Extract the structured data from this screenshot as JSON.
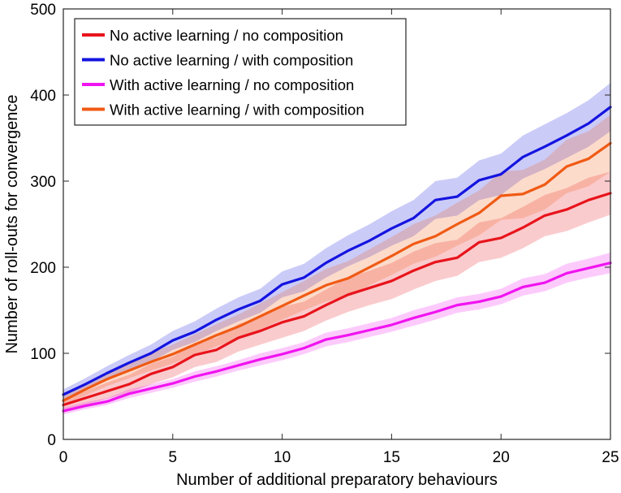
{
  "chart_data": {
    "type": "line",
    "xlabel": "Number of additional preparatory behaviours",
    "ylabel": "Number of roll-outs for convergence",
    "xlim": [
      0,
      25
    ],
    "ylim": [
      0,
      500
    ],
    "xticks": [
      0,
      5,
      10,
      15,
      20,
      25
    ],
    "yticks": [
      0,
      100,
      200,
      300,
      400,
      500
    ],
    "x": [
      0,
      1,
      2,
      3,
      4,
      5,
      6,
      7,
      8,
      9,
      10,
      11,
      12,
      13,
      14,
      15,
      16,
      17,
      18,
      19,
      20,
      21,
      22,
      23,
      24,
      25
    ],
    "legend_position": "top-left",
    "series": [
      {
        "name": "No active learning / no composition",
        "color": "#e8141c",
        "values": [
          40,
          48,
          56,
          64,
          76,
          84,
          98,
          104,
          118,
          126,
          136,
          143,
          156,
          168,
          176,
          184,
          196,
          206,
          211,
          229,
          234,
          246,
          260,
          267,
          278,
          286
        ],
        "lower": [
          34,
          40,
          47,
          54,
          64,
          72,
          84,
          90,
          102,
          110,
          118,
          126,
          138,
          148,
          156,
          163,
          174,
          184,
          190,
          206,
          211,
          222,
          236,
          242,
          252,
          261
        ],
        "upper": [
          46,
          56,
          66,
          75,
          88,
          96,
          112,
          118,
          134,
          142,
          154,
          160,
          174,
          188,
          196,
          205,
          218,
          228,
          232,
          252,
          257,
          270,
          284,
          292,
          304,
          311
        ]
      },
      {
        "name": "No active learning / with composition",
        "color": "#1414e0",
        "values": [
          52,
          64,
          77,
          89,
          100,
          115,
          125,
          139,
          151,
          161,
          180,
          188,
          205,
          219,
          231,
          245,
          257,
          278,
          282,
          301,
          308,
          328,
          340,
          353,
          367,
          386
        ],
        "lower": [
          46,
          57,
          69,
          80,
          90,
          104,
          113,
          126,
          137,
          147,
          165,
          172,
          188,
          201,
          212,
          225,
          236,
          256,
          260,
          278,
          284,
          303,
          314,
          327,
          340,
          358
        ],
        "upper": [
          58,
          71,
          85,
          98,
          110,
          126,
          137,
          152,
          165,
          175,
          195,
          204,
          222,
          237,
          250,
          265,
          278,
          300,
          304,
          324,
          332,
          353,
          366,
          379,
          394,
          414
        ]
      },
      {
        "name": "With active learning / no composition",
        "color": "#f014f0",
        "values": [
          33,
          39,
          44,
          53,
          59,
          65,
          73,
          79,
          86,
          93,
          99,
          106,
          116,
          121,
          127,
          133,
          141,
          148,
          156,
          160,
          166,
          177,
          182,
          193,
          199,
          205
        ],
        "lower": [
          29,
          35,
          40,
          48,
          54,
          60,
          67,
          73,
          80,
          86,
          92,
          99,
          108,
          113,
          119,
          125,
          132,
          139,
          147,
          151,
          157,
          167,
          172,
          182,
          188,
          193
        ],
        "upper": [
          37,
          43,
          48,
          58,
          64,
          70,
          79,
          85,
          92,
          100,
          106,
          113,
          124,
          129,
          135,
          141,
          150,
          157,
          165,
          169,
          175,
          187,
          192,
          204,
          210,
          217
        ]
      },
      {
        "name": "With active learning / with composition",
        "color": "#f05a14",
        "values": [
          45,
          58,
          70,
          80,
          90,
          99,
          110,
          121,
          131,
          143,
          155,
          167,
          179,
          187,
          200,
          213,
          227,
          236,
          250,
          263,
          283,
          285,
          296,
          317,
          326,
          344
        ],
        "lower": [
          40,
          51,
          62,
          71,
          80,
          88,
          98,
          108,
          117,
          128,
          139,
          150,
          160,
          167,
          179,
          191,
          204,
          212,
          225,
          237,
          255,
          257,
          267,
          286,
          294,
          311
        ],
        "upper": [
          50,
          65,
          78,
          89,
          100,
          110,
          122,
          134,
          145,
          158,
          171,
          184,
          198,
          207,
          221,
          235,
          250,
          260,
          275,
          289,
          311,
          313,
          325,
          348,
          358,
          377
        ]
      }
    ]
  }
}
